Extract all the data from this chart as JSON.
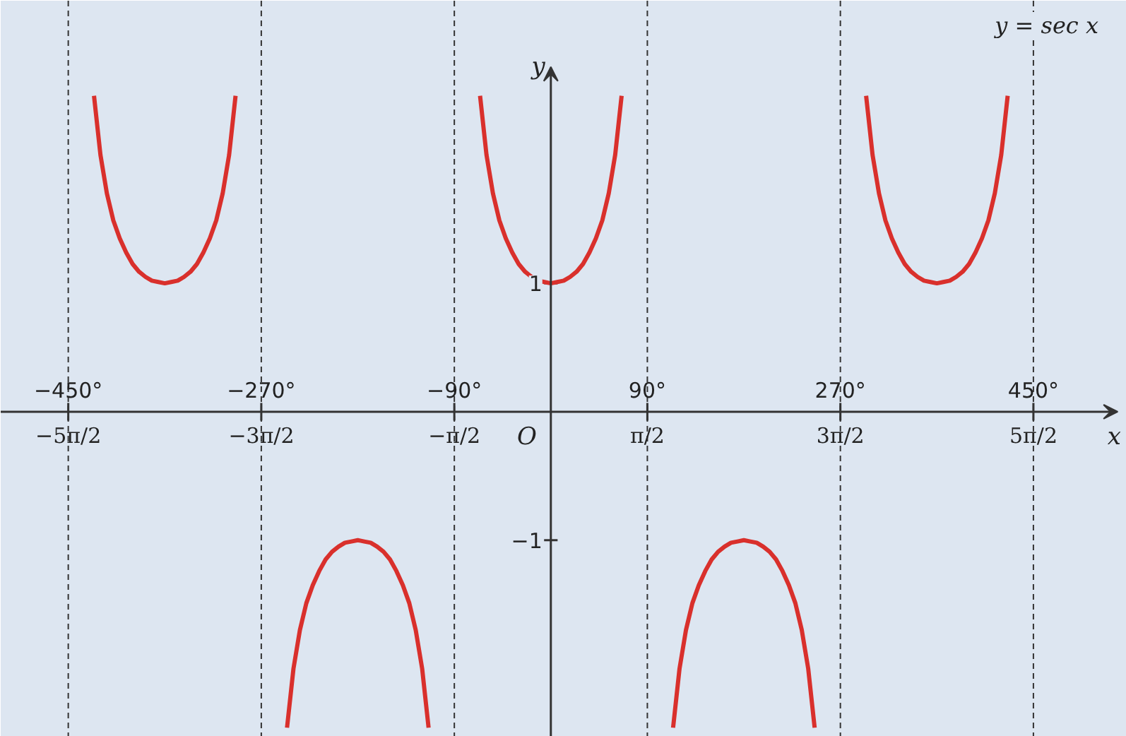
{
  "chart_data": {
    "type": "line",
    "title": "y = sec x",
    "xlabel": "x",
    "ylabel": "y",
    "annotations": [
      "O"
    ],
    "series": [
      {
        "color": "#d9302c",
        "x": [
          -426,
          -420,
          -414,
          -408,
          -402,
          -396,
          -390,
          -384,
          -378,
          -372,
          -366,
          -360,
          -354,
          -348,
          -342,
          -336,
          -330,
          -324,
          -318,
          -312,
          -306,
          -300,
          -294
        ],
        "values": [
          2.46,
          2,
          1.7,
          1.49,
          1.35,
          1.24,
          1.15,
          1.09,
          1.05,
          1.02,
          1.01,
          1,
          1.01,
          1.02,
          1.05,
          1.09,
          1.15,
          1.24,
          1.35,
          1.49,
          1.7,
          2,
          2.46
        ]
      },
      {
        "color": "#d9302c",
        "x": [
          -246,
          -240,
          -234,
          -228,
          -222,
          -216,
          -210,
          -204,
          -198,
          -192,
          -186,
          -180,
          -174,
          -168,
          -162,
          -156,
          -150,
          -144,
          -138,
          -132,
          -126,
          -120,
          -114
        ],
        "values": [
          -2.46,
          -2,
          -1.7,
          -1.49,
          -1.35,
          -1.24,
          -1.15,
          -1.09,
          -1.05,
          -1.02,
          -1.01,
          -1,
          -1.01,
          -1.02,
          -1.05,
          -1.09,
          -1.15,
          -1.24,
          -1.35,
          -1.49,
          -1.7,
          -2,
          -2.46
        ]
      },
      {
        "color": "#d9302c",
        "x": [
          -66,
          -60,
          -54,
          -48,
          -42,
          -36,
          -30,
          -24,
          -18,
          -12,
          -6,
          0,
          6,
          12,
          18,
          24,
          30,
          36,
          42,
          48,
          54,
          60,
          66
        ],
        "values": [
          2.46,
          2,
          1.7,
          1.49,
          1.35,
          1.24,
          1.15,
          1.09,
          1.05,
          1.02,
          1.01,
          1,
          1.01,
          1.02,
          1.05,
          1.09,
          1.15,
          1.24,
          1.35,
          1.49,
          1.7,
          2,
          2.46
        ]
      },
      {
        "color": "#d9302c",
        "x": [
          114,
          120,
          126,
          132,
          138,
          144,
          150,
          156,
          162,
          168,
          174,
          180,
          186,
          192,
          198,
          204,
          210,
          216,
          222,
          228,
          234,
          240,
          246
        ],
        "values": [
          -2.46,
          -2,
          -1.7,
          -1.49,
          -1.35,
          -1.24,
          -1.15,
          -1.09,
          -1.05,
          -1.02,
          -1.01,
          -1,
          -1.01,
          -1.02,
          -1.05,
          -1.09,
          -1.15,
          -1.24,
          -1.35,
          -1.49,
          -1.7,
          -2,
          -2.46
        ]
      },
      {
        "color": "#d9302c",
        "x": [
          294,
          300,
          306,
          312,
          318,
          324,
          330,
          336,
          342,
          348,
          354,
          360,
          366,
          372,
          378,
          384,
          390,
          396,
          402,
          408,
          414,
          420,
          426
        ],
        "values": [
          2.46,
          2,
          1.7,
          1.49,
          1.35,
          1.24,
          1.15,
          1.09,
          1.05,
          1.02,
          1.01,
          1,
          1.01,
          1.02,
          1.05,
          1.09,
          1.15,
          1.24,
          1.35,
          1.49,
          1.7,
          2,
          2.46
        ]
      }
    ],
    "xlim": [
      -513,
      537
    ],
    "ylim": [
      -2.53,
      3.2
    ],
    "xticks": [
      {
        "value": -450,
        "label": "−450°"
      },
      {
        "value": -270,
        "label": "−270°"
      },
      {
        "value": -90,
        "label": "−90°"
      },
      {
        "value": 90,
        "label": "90°"
      },
      {
        "value": 270,
        "label": "270°"
      },
      {
        "value": 450,
        "label": "450°"
      }
    ],
    "x2lim": [
      -8.954,
      9.372
    ],
    "x2ticks": [
      {
        "value": -7.854,
        "label": "−5π/2"
      },
      {
        "value": -4.712,
        "label": "−3π/2"
      },
      {
        "value": -1.571,
        "label": "−π/2"
      },
      {
        "value": 1.571,
        "label": "π/2"
      },
      {
        "value": 4.712,
        "label": "3π/2"
      },
      {
        "value": 7.854,
        "label": "5π/2"
      }
    ],
    "yticks": [
      1,
      {
        "value": -1,
        "label": "−1"
      }
    ],
    "ref_lines": [
      {
        "axis": "x",
        "value": -450,
        "line_style": "dashed"
      },
      {
        "axis": "x",
        "value": -270,
        "line_style": "dashed"
      },
      {
        "axis": "x",
        "value": -90,
        "line_style": "dashed"
      },
      {
        "axis": "x",
        "value": 90,
        "line_style": "dashed"
      },
      {
        "axis": "x",
        "value": 270,
        "line_style": "dashed"
      },
      {
        "axis": "x",
        "value": 450,
        "line_style": "dashed"
      }
    ],
    "grid": false,
    "marker": "none",
    "line_style": "solid"
  }
}
